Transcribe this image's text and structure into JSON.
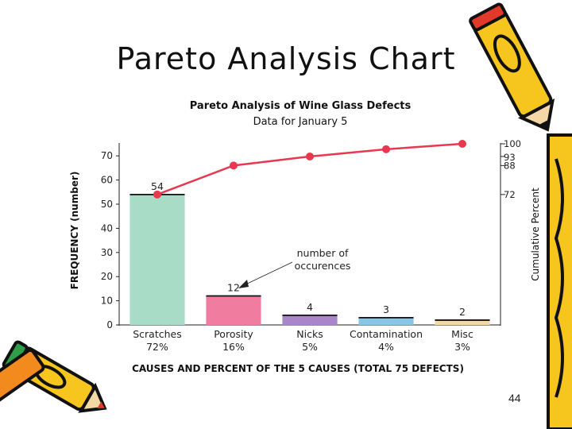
{
  "slide": {
    "title": "Pareto Analysis Chart",
    "page_number": "44"
  },
  "chart_data": {
    "type": "bar",
    "title": "Pareto Analysis of Wine Glass Defects",
    "subtitle": "Data for January 5",
    "categories": [
      "Scratches",
      "Porosity",
      "Nicks",
      "Contamination",
      "Misc"
    ],
    "category_percents": [
      "72%",
      "16%",
      "5%",
      "4%",
      "3%"
    ],
    "values": [
      54,
      12,
      4,
      3,
      2
    ],
    "data_labels": [
      "54",
      "12",
      "4",
      "3",
      "2"
    ],
    "bar_colors": [
      "#a8dcc7",
      "#f07ca0",
      "#a985c9",
      "#89c6e6",
      "#f5d9a4"
    ],
    "cumulative_line": {
      "values": [
        72,
        88,
        93,
        97,
        100
      ],
      "color": "#e8384f"
    },
    "xlabel": "CAUSES AND PERCENT OF THE 5 CAUSES (TOTAL 75 DEFECTS)",
    "ylabel": "FREQUENCY (number)",
    "y2label": "Cumulative Percent",
    "ylim": [
      0,
      75
    ],
    "yticks": [
      "0",
      "10",
      "20",
      "30",
      "40",
      "50",
      "60",
      "70"
    ],
    "y2ticks": [
      "100",
      "93",
      "88",
      "72"
    ],
    "annotation": "number of occurences"
  }
}
